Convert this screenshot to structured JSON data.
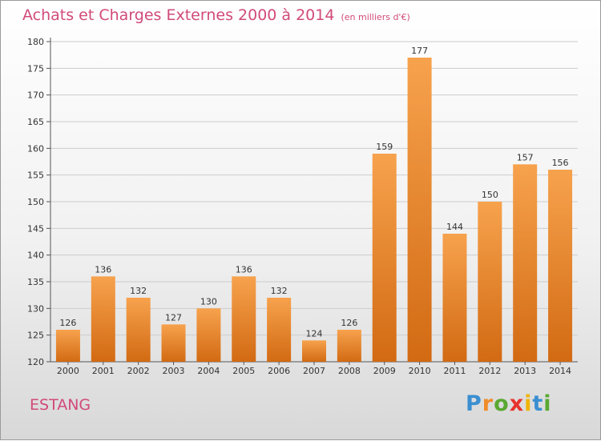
{
  "header": {
    "title": "Achats et Charges Externes 2000 à 2014",
    "subtitle": "(en milliers d'€)"
  },
  "footer": {
    "commune": "ESTANG",
    "logo_letters": [
      "P",
      "r",
      "o",
      "x",
      "i",
      "t",
      "i"
    ],
    "logo_colors": [
      "#3a8fd1",
      "#f08c2a",
      "#5aa832",
      "#e8322c",
      "#f0b400",
      "#3a8fd1",
      "#5aa832"
    ]
  },
  "colors": {
    "bar_top": "#f7a24d",
    "bar_bottom": "#d26a13",
    "grid": "#cccccc",
    "text": "#333333"
  },
  "chart_data": {
    "type": "bar",
    "title": "Achats et Charges Externes 2000 à 2014",
    "subtitle": "(en milliers d'€)",
    "categories": [
      "2000",
      "2001",
      "2002",
      "2003",
      "2004",
      "2005",
      "2006",
      "2007",
      "2008",
      "2009",
      "2010",
      "2011",
      "2012",
      "2013",
      "2014"
    ],
    "values": [
      126,
      136,
      132,
      127,
      130,
      136,
      132,
      124,
      126,
      159,
      177,
      144,
      150,
      157,
      156
    ],
    "ylim": [
      120,
      180
    ],
    "yticks": [
      120,
      125,
      130,
      135,
      140,
      145,
      150,
      155,
      160,
      165,
      170,
      175,
      180
    ],
    "grid": true,
    "data_labels": true
  }
}
